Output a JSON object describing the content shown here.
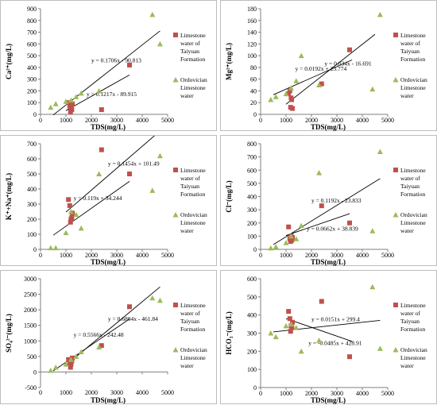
{
  "x_axis_label": "TDS(mg/L)",
  "legend": {
    "limestone": "Limestone water of Taiyuan Formation",
    "ordovician": "Ordovician Limestone water"
  },
  "colors": {
    "limestone": "#c0504d",
    "ordovician": "#9bbb59",
    "trendline": "#000000",
    "frame": "#bdbdbd",
    "axis": "#7f7f7f"
  },
  "chart_data": [
    {
      "type": "scatter",
      "ylabel": "Ca²⁺(mg/L)",
      "xlim": [
        0,
        5000
      ],
      "ylim": [
        0,
        900
      ],
      "xticks": [
        0,
        1000,
        2000,
        3000,
        4000,
        5000
      ],
      "yticks": [
        0,
        100,
        200,
        300,
        400,
        500,
        600,
        700,
        800,
        900
      ],
      "series": [
        {
          "name": "Limestone water of Taiyuan Formation",
          "key": "limestone",
          "x": [
            1100,
            1150,
            1200,
            1180,
            1250,
            1230,
            2400,
            3500
          ],
          "y": [
            100,
            70,
            50,
            20,
            90,
            40,
            40,
            420
          ]
        },
        {
          "name": "Ordovician Limestone water",
          "key": "ordovician",
          "x": [
            400,
            600,
            1000,
            1200,
            1400,
            1600,
            2300,
            4400,
            4700
          ],
          "y": [
            60,
            90,
            110,
            120,
            150,
            180,
            200,
            850,
            600
          ]
        }
      ],
      "trendlines": [
        {
          "equation": "y = 0.1706x - 90.813",
          "x_range": [
            500,
            4700
          ]
        },
        {
          "equation": "y = 0.1217x - 89.915",
          "x_range": [
            1000,
            3500
          ]
        }
      ]
    },
    {
      "type": "scatter",
      "ylabel": "Mg²⁺(mg/L)",
      "xlim": [
        0,
        5000
      ],
      "ylim": [
        0,
        180
      ],
      "xticks": [
        0,
        1000,
        2000,
        3000,
        4000,
        5000
      ],
      "yticks": [
        0,
        20,
        40,
        60,
        80,
        100,
        120,
        140,
        160,
        180
      ],
      "series": [
        {
          "name": "Limestone water of Taiyuan Formation",
          "key": "limestone",
          "x": [
            1100,
            1150,
            1200,
            1180,
            1250,
            1220,
            2400,
            3500
          ],
          "y": [
            35,
            40,
            28,
            12,
            10,
            25,
            52,
            110
          ]
        },
        {
          "name": "Ordovician Limestone water",
          "key": "ordovician",
          "x": [
            400,
            600,
            1000,
            1200,
            1400,
            1600,
            2300,
            4400,
            4700
          ],
          "y": [
            25,
            30,
            35,
            45,
            57,
            100,
            50,
            43,
            170
          ]
        }
      ],
      "trendlines": [
        {
          "equation": "y = 0.0192x + 23.774",
          "x_range": [
            500,
            3600
          ]
        },
        {
          "equation": "y = 0.034x - 16.691",
          "x_range": [
            1000,
            4500
          ]
        }
      ]
    },
    {
      "type": "scatter",
      "ylabel": "K⁺+Na⁺(mg/L)",
      "xlim": [
        0,
        5000
      ],
      "ylim": [
        0,
        700
      ],
      "xticks": [
        0,
        1000,
        2000,
        3000,
        4000,
        5000
      ],
      "yticks": [
        0,
        100,
        200,
        300,
        400,
        500,
        600,
        700
      ],
      "series": [
        {
          "name": "Limestone water of Taiyuan Formation",
          "key": "limestone",
          "x": [
            1100,
            1150,
            1200,
            1180,
            1250,
            1230,
            2400,
            3500
          ],
          "y": [
            330,
            290,
            200,
            180,
            240,
            210,
            660,
            500
          ]
        },
        {
          "name": "Ordovician Limestone water",
          "key": "ordovician",
          "x": [
            400,
            600,
            1000,
            1200,
            1400,
            1600,
            2300,
            4400,
            4700
          ],
          "y": [
            10,
            10,
            110,
            250,
            230,
            140,
            500,
            390,
            620
          ]
        }
      ],
      "trendlines": [
        {
          "equation": "y = 0.119x + 34.244",
          "x_range": [
            500,
            3500
          ]
        },
        {
          "equation": "y = 0.1454x + 101.49",
          "x_range": [
            1000,
            4700
          ]
        }
      ]
    },
    {
      "type": "scatter",
      "ylabel": "Cl⁻(mg/L)",
      "xlim": [
        0,
        5000
      ],
      "ylim": [
        0,
        800
      ],
      "xticks": [
        0,
        1000,
        2000,
        3000,
        4000,
        5000
      ],
      "yticks": [
        0,
        100,
        200,
        300,
        400,
        500,
        600,
        700,
        800
      ],
      "series": [
        {
          "name": "Limestone water of Taiyuan Formation",
          "key": "limestone",
          "x": [
            1100,
            1150,
            1200,
            1180,
            1250,
            1230,
            2400,
            3500
          ],
          "y": [
            170,
            80,
            100,
            60,
            90,
            70,
            330,
            200
          ]
        },
        {
          "name": "Ordovician Limestone water",
          "key": "ordovician",
          "x": [
            400,
            600,
            1000,
            1200,
            1400,
            1600,
            2300,
            4400,
            4700
          ],
          "y": [
            10,
            20,
            50,
            100,
            80,
            180,
            580,
            140,
            740
          ]
        }
      ],
      "trendlines": [
        {
          "equation": "y = 0.1192x - 23.833",
          "x_range": [
            500,
            4700
          ]
        },
        {
          "equation": "y = 0.0662x + 38.839",
          "x_range": [
            1000,
            3500
          ]
        }
      ]
    },
    {
      "type": "scatter",
      "ylabel": "SO₄²⁻(mg/L)",
      "xlim": [
        0,
        5000
      ],
      "ylim": [
        -500,
        3000
      ],
      "xticks": [
        0,
        1000,
        2000,
        3000,
        4000,
        5000
      ],
      "yticks": [
        -500,
        0,
        500,
        1000,
        1500,
        2000,
        2500,
        3000
      ],
      "series": [
        {
          "name": "Limestone water of Taiyuan Formation",
          "key": "limestone",
          "x": [
            1100,
            1150,
            1200,
            1180,
            1250,
            1230,
            2400,
            3500
          ],
          "y": [
            400,
            300,
            250,
            150,
            450,
            350,
            850,
            2100
          ]
        },
        {
          "name": "Ordovician Limestone water",
          "key": "ordovician",
          "x": [
            400,
            600,
            1000,
            1200,
            1400,
            1600,
            2300,
            4400,
            4700
          ],
          "y": [
            50,
            150,
            250,
            400,
            500,
            650,
            800,
            2380,
            2300
          ]
        }
      ],
      "trendlines": [
        {
          "equation": "y = 0.5566x - 242.48",
          "x_range": [
            500,
            3500
          ]
        },
        {
          "equation": "y = 0.6804x - 461.84",
          "x_range": [
            1000,
            4700
          ]
        }
      ]
    },
    {
      "type": "scatter",
      "ylabel": "HCO₃⁻(mg/L)",
      "xlim": [
        0,
        5000
      ],
      "ylim": [
        0,
        600
      ],
      "xticks": [
        0,
        1000,
        2000,
        3000,
        4000,
        5000
      ],
      "yticks": [
        0,
        100,
        200,
        300,
        400,
        500,
        600
      ],
      "series": [
        {
          "name": "Limestone water of Taiyuan Formation",
          "key": "limestone",
          "x": [
            1100,
            1150,
            1200,
            1180,
            1250,
            1230,
            2400,
            3500
          ],
          "y": [
            420,
            380,
            340,
            310,
            360,
            330,
            475,
            170
          ]
        },
        {
          "name": "Ordovician Limestone water",
          "key": "ordovician",
          "x": [
            400,
            600,
            1000,
            1200,
            1400,
            1600,
            2300,
            4400,
            4700
          ],
          "y": [
            300,
            280,
            340,
            350,
            330,
            200,
            260,
            555,
            215
          ]
        }
      ],
      "trendlines": [
        {
          "equation": "y = 0.0151x + 299.4",
          "x_range": [
            500,
            4700
          ]
        },
        {
          "equation": "y = -0.0485x + 428.91",
          "x_range": [
            1000,
            3600
          ]
        }
      ]
    }
  ]
}
